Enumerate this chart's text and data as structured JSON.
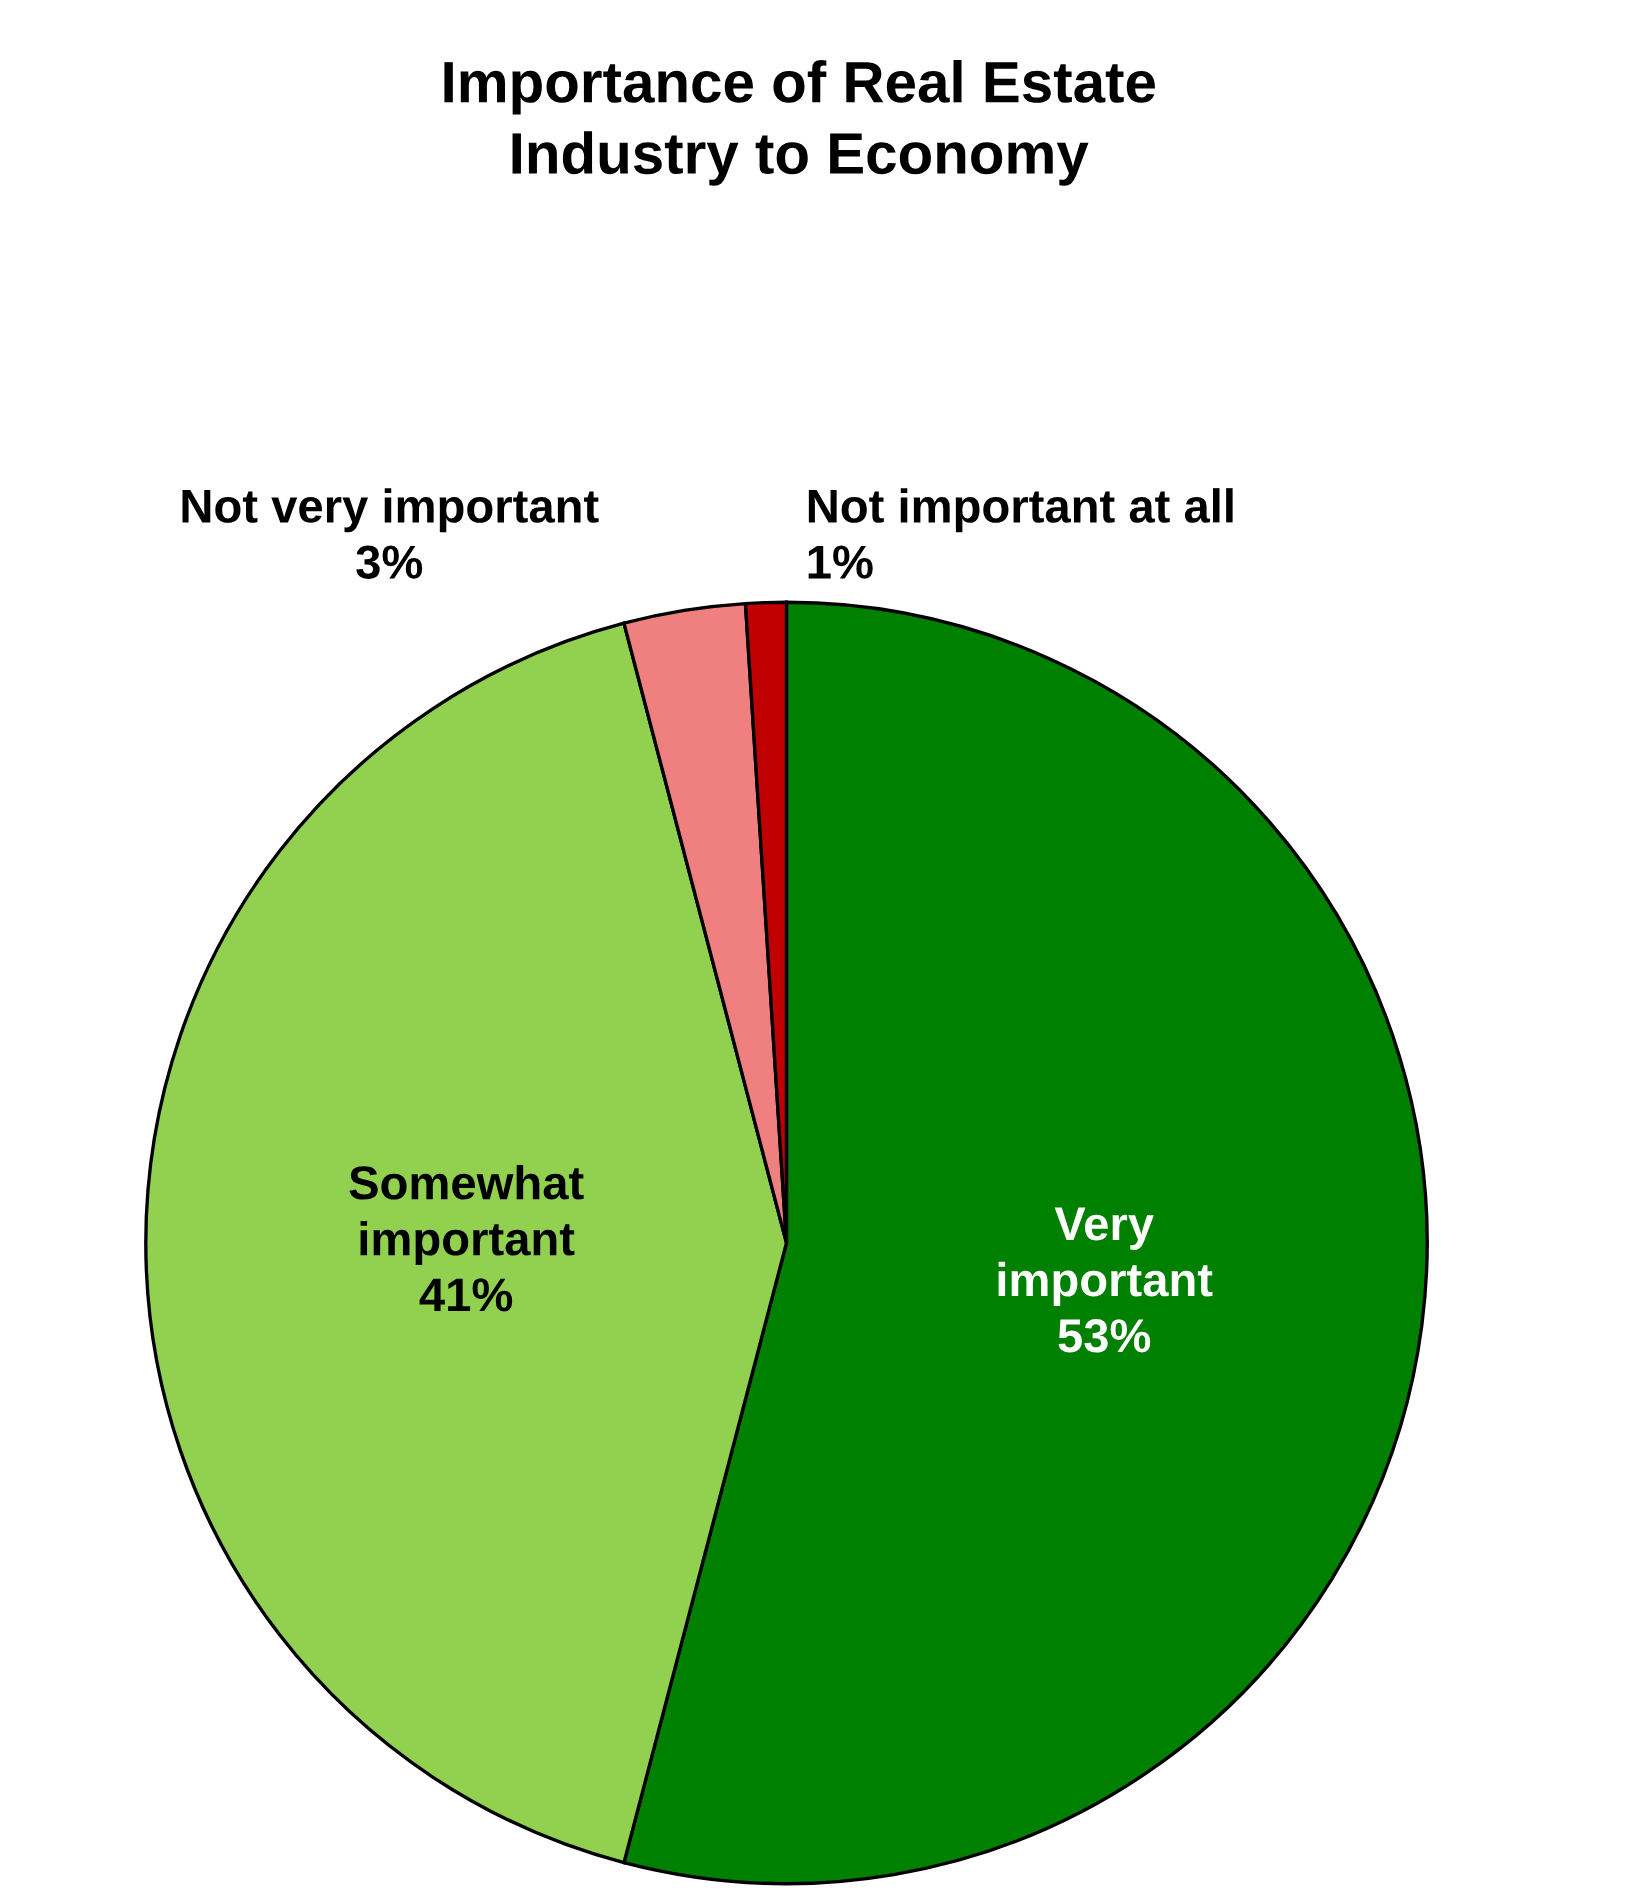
{
  "chart_data": {
    "type": "pie",
    "title": "Importance of Real Estate\nIndustry to Economy",
    "categories": [
      "Very important",
      "Somewhat important",
      "Not very important",
      "Not important at all"
    ],
    "values": [
      53,
      41,
      3,
      1
    ],
    "value_labels": [
      "53%",
      "41%",
      "3%",
      "1%"
    ],
    "colors": [
      "#008000",
      "#92d050",
      "#f08080",
      "#c00000"
    ]
  }
}
